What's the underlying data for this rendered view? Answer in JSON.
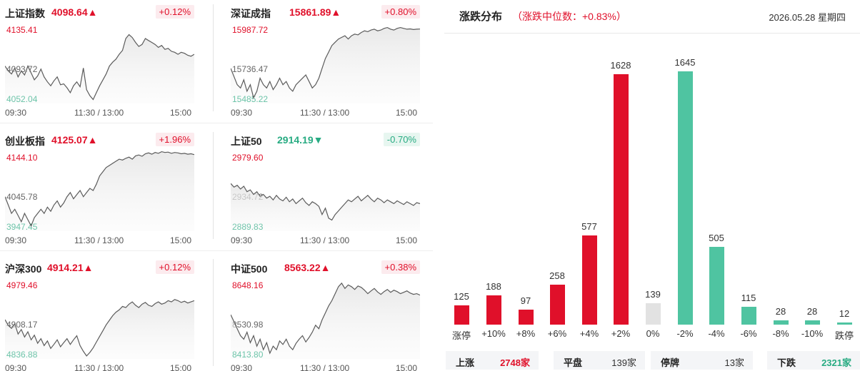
{
  "indices": [
    {
      "name": "上证指数",
      "price": "4098.64",
      "arrow": "▲",
      "change": "+0.12%",
      "dir": "up",
      "high": "4135.41",
      "mid": "4093.72",
      "low": "4052.04",
      "times": [
        "09:30",
        "11:30 / 13:00",
        "15:00"
      ],
      "series": [
        4090,
        4085,
        4082,
        4088,
        4079,
        4085,
        4081,
        4090,
        4083,
        4076,
        4080,
        4087,
        4079,
        4074,
        4070,
        4075,
        4079,
        4071,
        4072,
        4068,
        4063,
        4070,
        4074,
        4069,
        4088,
        4066,
        4060,
        4056,
        4063,
        4070,
        4076,
        4082,
        4090,
        4094,
        4097,
        4102,
        4106,
        4118,
        4122,
        4119,
        4114,
        4110,
        4112,
        4118,
        4116,
        4114,
        4112,
        4109,
        4111,
        4107,
        4108,
        4105,
        4104,
        4102,
        4104,
        4103,
        4101,
        4100,
        4102
      ]
    },
    {
      "name": "深证成指",
      "price": "15861.89",
      "arrow": "▲",
      "change": "+0.80%",
      "dir": "up",
      "high": "15987.72",
      "mid": "15736.47",
      "low": "15485.22",
      "times": [
        "09:30",
        "11:30 / 13:00",
        "15:00"
      ],
      "series": [
        15700,
        15650,
        15600,
        15580,
        15630,
        15560,
        15600,
        15520,
        15560,
        15640,
        15600,
        15580,
        15620,
        15570,
        15600,
        15640,
        15600,
        15620,
        15580,
        15560,
        15600,
        15620,
        15640,
        15660,
        15620,
        15580,
        15600,
        15640,
        15700,
        15760,
        15800,
        15840,
        15860,
        15880,
        15890,
        15900,
        15880,
        15900,
        15910,
        15905,
        15920,
        15930,
        15925,
        15935,
        15940,
        15930,
        15935,
        15945,
        15950,
        15940,
        15935,
        15945,
        15950,
        15945,
        15940,
        15942,
        15938,
        15940,
        15941
      ]
    },
    {
      "name": "创业板指",
      "price": "4125.07",
      "arrow": "▲",
      "change": "+1.96%",
      "dir": "up",
      "high": "4144.10",
      "mid": "4045.78",
      "low": "3947.45",
      "times": [
        "09:30",
        "11:30 / 13:00",
        "15:00"
      ],
      "series": [
        4030,
        4010,
        3990,
        4000,
        3985,
        3970,
        3990,
        3975,
        3960,
        3980,
        3990,
        4000,
        3990,
        4005,
        3995,
        4010,
        4020,
        4005,
        4015,
        4030,
        4040,
        4025,
        4035,
        4045,
        4030,
        4040,
        4050,
        4045,
        4060,
        4080,
        4090,
        4100,
        4105,
        4110,
        4115,
        4120,
        4118,
        4122,
        4125,
        4120,
        4128,
        4130,
        4127,
        4133,
        4135,
        4132,
        4136,
        4134,
        4138,
        4136,
        4137,
        4134,
        4136,
        4135,
        4133,
        4134,
        4132,
        4133,
        4131
      ]
    },
    {
      "name": "上证50",
      "price": "2914.19",
      "arrow": "▼",
      "change": "-0.70%",
      "dir": "down",
      "high": "2979.60",
      "mid": "2934.72",
      "low": "2889.83",
      "times": [
        "09:30",
        "11:30 / 13:00",
        "15:00"
      ],
      "series": [
        2942,
        2938,
        2940,
        2936,
        2939,
        2933,
        2935,
        2930,
        2933,
        2928,
        2930,
        2926,
        2928,
        2924,
        2929,
        2925,
        2923,
        2927,
        2922,
        2925,
        2920,
        2923,
        2926,
        2921,
        2918,
        2922,
        2920,
        2917,
        2908,
        2915,
        2904,
        2902,
        2908,
        2912,
        2916,
        2920,
        2924,
        2922,
        2925,
        2928,
        2923,
        2926,
        2929,
        2925,
        2922,
        2926,
        2924,
        2921,
        2924,
        2922,
        2920,
        2923,
        2921,
        2919,
        2922,
        2920,
        2918,
        2921,
        2920
      ]
    },
    {
      "name": "沪深300",
      "price": "4914.21",
      "arrow": "▲",
      "change": "+0.12%",
      "dir": "up",
      "high": "4979.46",
      "mid": "4908.17",
      "low": "4836.88",
      "times": [
        "09:30",
        "11:30 / 13:00",
        "15:00"
      ],
      "series": [
        4905,
        4895,
        4890,
        4898,
        4880,
        4888,
        4875,
        4884,
        4870,
        4878,
        4864,
        4872,
        4860,
        4868,
        4855,
        4862,
        4870,
        4858,
        4865,
        4872,
        4862,
        4870,
        4877,
        4860,
        4850,
        4842,
        4848,
        4856,
        4866,
        4876,
        4886,
        4896,
        4904,
        4912,
        4918,
        4922,
        4928,
        4926,
        4932,
        4936,
        4930,
        4926,
        4932,
        4935,
        4930,
        4928,
        4933,
        4936,
        4932,
        4934,
        4938,
        4936,
        4940,
        4938,
        4935,
        4937,
        4934,
        4936,
        4938
      ]
    },
    {
      "name": "中证500",
      "price": "8563.22",
      "arrow": "▲",
      "change": "+0.38%",
      "dir": "up",
      "high": "8648.16",
      "mid": "8530.98",
      "low": "8413.80",
      "times": [
        "09:30",
        "11:30 / 13:00",
        "15:00"
      ],
      "series": [
        8540,
        8520,
        8500,
        8480,
        8470,
        8490,
        8460,
        8480,
        8450,
        8470,
        8440,
        8460,
        8430,
        8450,
        8440,
        8465,
        8455,
        8470,
        8450,
        8440,
        8458,
        8470,
        8480,
        8462,
        8475,
        8490,
        8510,
        8500,
        8525,
        8545,
        8565,
        8580,
        8600,
        8620,
        8630,
        8615,
        8625,
        8620,
        8612,
        8622,
        8618,
        8610,
        8600,
        8608,
        8615,
        8605,
        8598,
        8606,
        8612,
        8604,
        8610,
        8606,
        8600,
        8604,
        8608,
        8602,
        8598,
        8600,
        8596
      ]
    }
  ],
  "distribution": {
    "title": "涨跌分布",
    "subtitle": "（涨跌中位数：+0.83%）",
    "date": "2026.05.28 星期四",
    "colors": {
      "up": "#e0102a",
      "flat": "#e2e2e2",
      "down": "#4fc4a1"
    },
    "bars": [
      {
        "cat": "涨停",
        "value": 125,
        "color": "up"
      },
      {
        "cat": "+10%",
        "value": 188,
        "color": "up"
      },
      {
        "cat": "+8%",
        "value": 97,
        "color": "up"
      },
      {
        "cat": "+6%",
        "value": 258,
        "color": "up"
      },
      {
        "cat": "+4%",
        "value": 577,
        "color": "up"
      },
      {
        "cat": "+2%",
        "value": 1628,
        "color": "up"
      },
      {
        "cat": "0%",
        "value": 139,
        "color": "flat"
      },
      {
        "cat": "-2%",
        "value": 1645,
        "color": "down"
      },
      {
        "cat": "-4%",
        "value": 505,
        "color": "down"
      },
      {
        "cat": "-6%",
        "value": 115,
        "color": "down"
      },
      {
        "cat": "-8%",
        "value": 28,
        "color": "down"
      },
      {
        "cat": "-10%",
        "value": 28,
        "color": "down"
      },
      {
        "cat": "跌停",
        "value": 12,
        "color": "down"
      }
    ],
    "stats": [
      {
        "label": "上涨",
        "value": "2748家",
        "tone": "up"
      },
      {
        "label": "平盘",
        "value": "139家",
        "tone": "neutral"
      },
      {
        "label": "停牌",
        "value": "13家",
        "tone": "neutral"
      },
      {
        "label": "下跌",
        "value": "2321家",
        "tone": "down"
      }
    ]
  }
}
